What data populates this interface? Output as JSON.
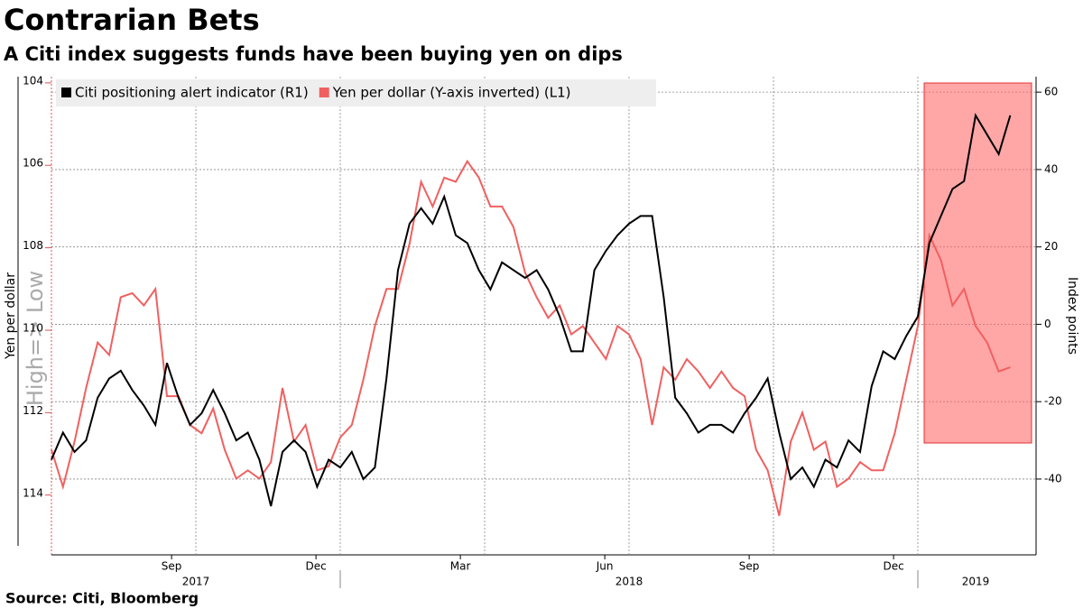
{
  "chart_data": {
    "type": "line",
    "title": "Contrarian Bets",
    "subtitle": "A Citi index suggests funds have been buying yen on dips",
    "source": "Source: Citi, Bloomberg",
    "ylabel": "Yen per dollar",
    "y2label": "Index points",
    "annotation": "High=> Low",
    "x": [
      2017.5,
      2017.52,
      2017.54,
      2017.56,
      2017.58,
      2017.6,
      2017.62,
      2017.64,
      2017.66,
      2017.68,
      2017.7,
      2017.72,
      2017.74,
      2017.76,
      2017.78,
      2017.8,
      2017.82,
      2017.84,
      2017.86,
      2017.88,
      2017.9,
      2017.92,
      2017.94,
      2017.96,
      2017.98,
      2018.0,
      2018.02,
      2018.04,
      2018.06,
      2018.08,
      2018.1,
      2018.12,
      2018.14,
      2018.16,
      2018.18,
      2018.2,
      2018.22,
      2018.24,
      2018.26,
      2018.28,
      2018.3,
      2018.32,
      2018.34,
      2018.36,
      2018.38,
      2018.4,
      2018.42,
      2018.44,
      2018.46,
      2018.48,
      2018.5,
      2018.52,
      2018.54,
      2018.56,
      2018.58,
      2018.6,
      2018.62,
      2018.64,
      2018.66,
      2018.68,
      2018.7,
      2018.72,
      2018.74,
      2018.76,
      2018.78,
      2018.8,
      2018.82,
      2018.84,
      2018.86,
      2018.88,
      2018.9,
      2018.92,
      2018.94,
      2018.96,
      2018.98,
      2019.0,
      2019.02,
      2019.04,
      2019.06,
      2019.08,
      2019.1,
      2019.12,
      2019.14,
      2019.16
    ],
    "series": [
      {
        "name": "Citi positioning alert indicator (R1)",
        "color": "#000000",
        "axis": "y2",
        "values": [
          -35,
          -28,
          -33,
          -30,
          -19,
          -14,
          -12,
          -17,
          -21,
          -26,
          -10,
          -19,
          -26,
          -23,
          -17,
          -23,
          -30,
          -28,
          -35,
          -47,
          -33,
          -30,
          -33,
          -42,
          -35,
          -37,
          -33,
          -40,
          -37,
          -14,
          14,
          26,
          30,
          26,
          33,
          23,
          21,
          14,
          9,
          16,
          14,
          12,
          14,
          9,
          2,
          -7,
          -7,
          14,
          19,
          23,
          26,
          28,
          28,
          7,
          -19,
          -23,
          -28,
          -26,
          -26,
          -28,
          -23,
          -19,
          -14,
          -28,
          -40,
          -37,
          -42,
          -35,
          -37,
          -30,
          -33,
          -16,
          -7,
          -9,
          -3,
          2,
          21,
          28,
          35,
          37,
          54,
          49,
          44,
          54
        ]
      },
      {
        "name": "Yen per dollar (Y-axis inverted) (L1)",
        "color": "#f06060",
        "axis": "y",
        "values": [
          112.9,
          113.8,
          112.7,
          111.4,
          110.3,
          110.6,
          109.2,
          109.1,
          109.4,
          109.0,
          111.6,
          111.6,
          112.3,
          112.5,
          111.9,
          112.9,
          113.6,
          113.4,
          113.6,
          113.2,
          111.4,
          112.7,
          112.3,
          113.4,
          113.3,
          112.6,
          112.3,
          111.2,
          109.9,
          109.0,
          109.0,
          107.9,
          106.4,
          107.0,
          106.3,
          106.4,
          105.9,
          106.3,
          107.0,
          107.0,
          107.5,
          108.6,
          109.2,
          109.7,
          109.4,
          110.1,
          109.9,
          110.3,
          110.7,
          109.9,
          110.1,
          110.7,
          112.3,
          110.9,
          111.2,
          110.7,
          111.0,
          111.4,
          111.0,
          111.4,
          111.6,
          112.9,
          113.4,
          114.5,
          112.7,
          112.0,
          112.9,
          112.7,
          113.8,
          113.6,
          113.2,
          113.4,
          113.4,
          112.5,
          111.2,
          109.9,
          107.7,
          108.3,
          109.4,
          109.0,
          109.9,
          110.3,
          111.0,
          110.9
        ]
      }
    ],
    "xlim": [
      2017.5,
      2019.2
    ],
    "xticks": [
      {
        "value": 2017.708,
        "label": "Sep"
      },
      {
        "value": 2017.958,
        "label": "Dec"
      },
      {
        "value": 2018.208,
        "label": "Mar"
      },
      {
        "value": 2018.458,
        "label": "Jun"
      },
      {
        "value": 2018.708,
        "label": "Sep"
      },
      {
        "value": 2018.958,
        "label": "Dec"
      }
    ],
    "xgrid": [
      2017.75,
      2018.0,
      2018.25,
      2018.5,
      2018.75,
      2019.0
    ],
    "year_ticks": [
      {
        "value": 2017.75,
        "label": "2017"
      },
      {
        "value": 2018.5,
        "label": "2018"
      },
      {
        "value": 2019.1,
        "label": "2019"
      }
    ],
    "year_separators": [
      2018.0,
      2019.0
    ],
    "ylim": [
      103.85,
      115.45
    ],
    "y_inverted": true,
    "yticks": [
      104,
      106,
      108,
      110,
      112,
      114
    ],
    "y2lim": [
      -59.6,
      64
    ],
    "y2ticks": [
      -40,
      -20,
      0,
      20,
      40,
      60
    ],
    "grid": true,
    "legend": "top-left"
  }
}
